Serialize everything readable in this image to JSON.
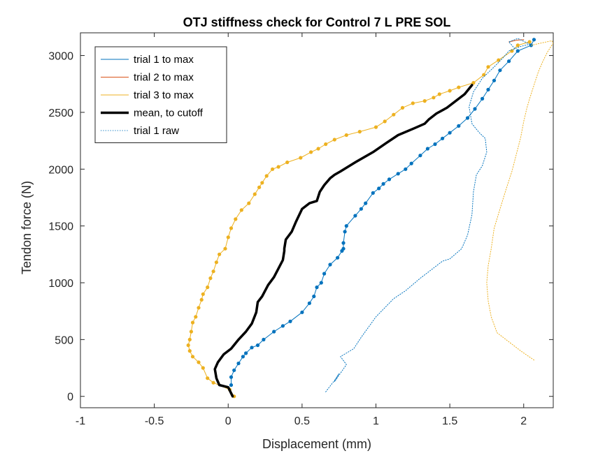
{
  "chart_data": {
    "type": "line",
    "title": "OTJ stiffness check for Control 7 L PRE SOL",
    "xlabel": "Displacement (mm)",
    "ylabel": "Tendon force (N)",
    "xlim": [
      -1,
      2.2
    ],
    "ylim": [
      -100,
      3200
    ],
    "x_ticks": [
      -1,
      -0.5,
      0,
      0.5,
      1,
      1.5,
      2
    ],
    "x_tick_labels": [
      "-1",
      "-0.5",
      "0",
      "0.5",
      "1",
      "1.5",
      "2"
    ],
    "y_ticks": [
      0,
      500,
      1000,
      1500,
      2000,
      2500,
      3000
    ],
    "y_tick_labels": [
      "0",
      "500",
      "1000",
      "1500",
      "2000",
      "2500",
      "3000"
    ],
    "grid": false,
    "legend_position": "top-left",
    "series": [
      {
        "name": "trial 1 to max",
        "color": "#0072BD",
        "style": "solid-with-dots",
        "x": [
          0.02,
          0.02,
          0.04,
          0.07,
          0.1,
          0.12,
          0.16,
          0.2,
          0.24,
          0.31,
          0.37,
          0.42,
          0.5,
          0.55,
          0.58,
          0.6,
          0.63,
          0.65,
          0.69,
          0.74,
          0.77,
          0.78,
          0.78,
          0.79,
          0.8,
          0.86,
          0.9,
          0.93,
          0.98,
          1.02,
          1.05,
          1.09,
          1.15,
          1.2,
          1.24,
          1.3,
          1.35,
          1.4,
          1.45,
          1.5,
          1.56,
          1.62,
          1.67,
          1.72,
          1.76,
          1.8,
          1.84,
          1.9,
          1.96,
          2.05,
          2.07
        ],
        "y": [
          100,
          170,
          230,
          290,
          350,
          380,
          430,
          450,
          500,
          570,
          620,
          660,
          740,
          820,
          880,
          960,
          1000,
          1080,
          1160,
          1220,
          1280,
          1300,
          1350,
          1450,
          1500,
          1590,
          1650,
          1700,
          1790,
          1830,
          1870,
          1910,
          1960,
          2000,
          2050,
          2120,
          2180,
          2220,
          2270,
          2320,
          2380,
          2450,
          2530,
          2620,
          2700,
          2780,
          2870,
          2950,
          3040,
          3090,
          3140
        ]
      },
      {
        "name": "trial 2 to max",
        "color": "#D95319",
        "style": "solid",
        "x": [
          1.9,
          1.95,
          2.0
        ],
        "y": [
          3120,
          3135,
          3140
        ]
      },
      {
        "name": "trial 3 to max",
        "color": "#EDB120",
        "style": "solid-with-dots",
        "x": [
          0.04,
          0.01,
          -0.1,
          -0.14,
          -0.17,
          -0.2,
          -0.24,
          -0.26,
          -0.27,
          -0.26,
          -0.25,
          -0.24,
          -0.22,
          -0.2,
          -0.18,
          -0.17,
          -0.14,
          -0.12,
          -0.1,
          -0.08,
          -0.06,
          -0.02,
          0.0,
          0.02,
          0.05,
          0.09,
          0.14,
          0.18,
          0.21,
          0.23,
          0.26,
          0.3,
          0.34,
          0.4,
          0.49,
          0.56,
          0.61,
          0.66,
          0.72,
          0.8,
          0.89,
          1.0,
          1.06,
          1.12,
          1.18,
          1.25,
          1.33,
          1.39,
          1.43,
          1.5,
          1.56,
          1.66,
          1.73,
          1.76,
          1.83,
          1.92,
          1.96,
          2.04
        ],
        "y": [
          0,
          60,
          120,
          160,
          250,
          300,
          350,
          400,
          450,
          500,
          570,
          650,
          700,
          780,
          850,
          900,
          960,
          1040,
          1100,
          1180,
          1250,
          1300,
          1400,
          1480,
          1560,
          1640,
          1700,
          1780,
          1840,
          1880,
          1940,
          2000,
          2020,
          2060,
          2100,
          2150,
          2180,
          2220,
          2260,
          2300,
          2330,
          2370,
          2420,
          2480,
          2540,
          2580,
          2600,
          2630,
          2660,
          2690,
          2720,
          2760,
          2830,
          2900,
          2960,
          3040,
          3090,
          3120
        ]
      },
      {
        "name": "mean, to cutoff",
        "color": "#000000",
        "style": "thick",
        "x": [
          0.03,
          0.0,
          -0.06,
          -0.08,
          -0.09,
          -0.07,
          -0.03,
          0.02,
          0.07,
          0.12,
          0.16,
          0.19,
          0.2,
          0.23,
          0.27,
          0.31,
          0.35,
          0.37,
          0.38,
          0.38,
          0.39,
          0.43,
          0.46,
          0.5,
          0.55,
          0.6,
          0.62,
          0.65,
          0.69,
          0.72,
          0.76,
          0.86,
          0.98,
          1.07,
          1.15,
          1.26,
          1.33,
          1.36,
          1.41,
          1.48,
          1.54,
          1.6,
          1.65
        ],
        "y": [
          0,
          80,
          100,
          160,
          240,
          300,
          370,
          420,
          500,
          570,
          640,
          740,
          830,
          880,
          980,
          1050,
          1150,
          1200,
          1280,
          1300,
          1380,
          1450,
          1540,
          1650,
          1700,
          1720,
          1800,
          1860,
          1920,
          1950,
          1980,
          2060,
          2150,
          2230,
          2300,
          2360,
          2400,
          2440,
          2490,
          2540,
          2600,
          2660,
          2740
        ]
      },
      {
        "name": "trial 1 raw",
        "color": "#0072BD",
        "style": "dotted",
        "x": [
          0.66,
          0.72,
          0.75,
          0.72,
          0.8,
          0.76,
          0.85,
          0.9,
          1.0,
          1.12,
          1.2,
          1.3,
          1.38,
          1.45,
          1.5,
          1.58,
          1.62,
          1.65,
          1.66,
          1.68,
          1.72,
          1.75,
          1.74,
          1.7,
          1.65,
          1.63,
          1.66,
          1.72,
          1.8,
          1.86,
          1.9,
          1.98,
          2.04,
          1.96,
          1.9,
          1.94
        ],
        "y": [
          40,
          140,
          200,
          130,
          280,
          350,
          420,
          520,
          700,
          860,
          930,
          1040,
          1120,
          1190,
          1210,
          1300,
          1420,
          1600,
          1800,
          1950,
          2030,
          2150,
          2270,
          2320,
          2400,
          2550,
          2680,
          2800,
          2900,
          2980,
          3040,
          3080,
          3100,
          3150,
          3120,
          3060
        ]
      },
      {
        "name": "",
        "color": "#EDB120",
        "style": "dotted",
        "x": [
          2.07,
          1.98,
          1.9,
          1.82,
          1.78,
          1.76,
          1.75,
          1.76,
          1.78,
          1.8,
          1.84,
          1.88,
          1.92,
          1.95,
          1.98,
          2.0,
          2.02,
          2.04,
          2.06,
          2.08,
          2.1,
          2.13,
          2.16,
          2.2,
          2.19,
          2.12,
          2.05
        ],
        "y": [
          320,
          400,
          480,
          560,
          700,
          840,
          1000,
          1150,
          1300,
          1480,
          1650,
          1820,
          1980,
          2130,
          2280,
          2420,
          2530,
          2620,
          2700,
          2780,
          2860,
          2950,
          3030,
          3110,
          3130,
          3110,
          3090
        ]
      }
    ]
  }
}
